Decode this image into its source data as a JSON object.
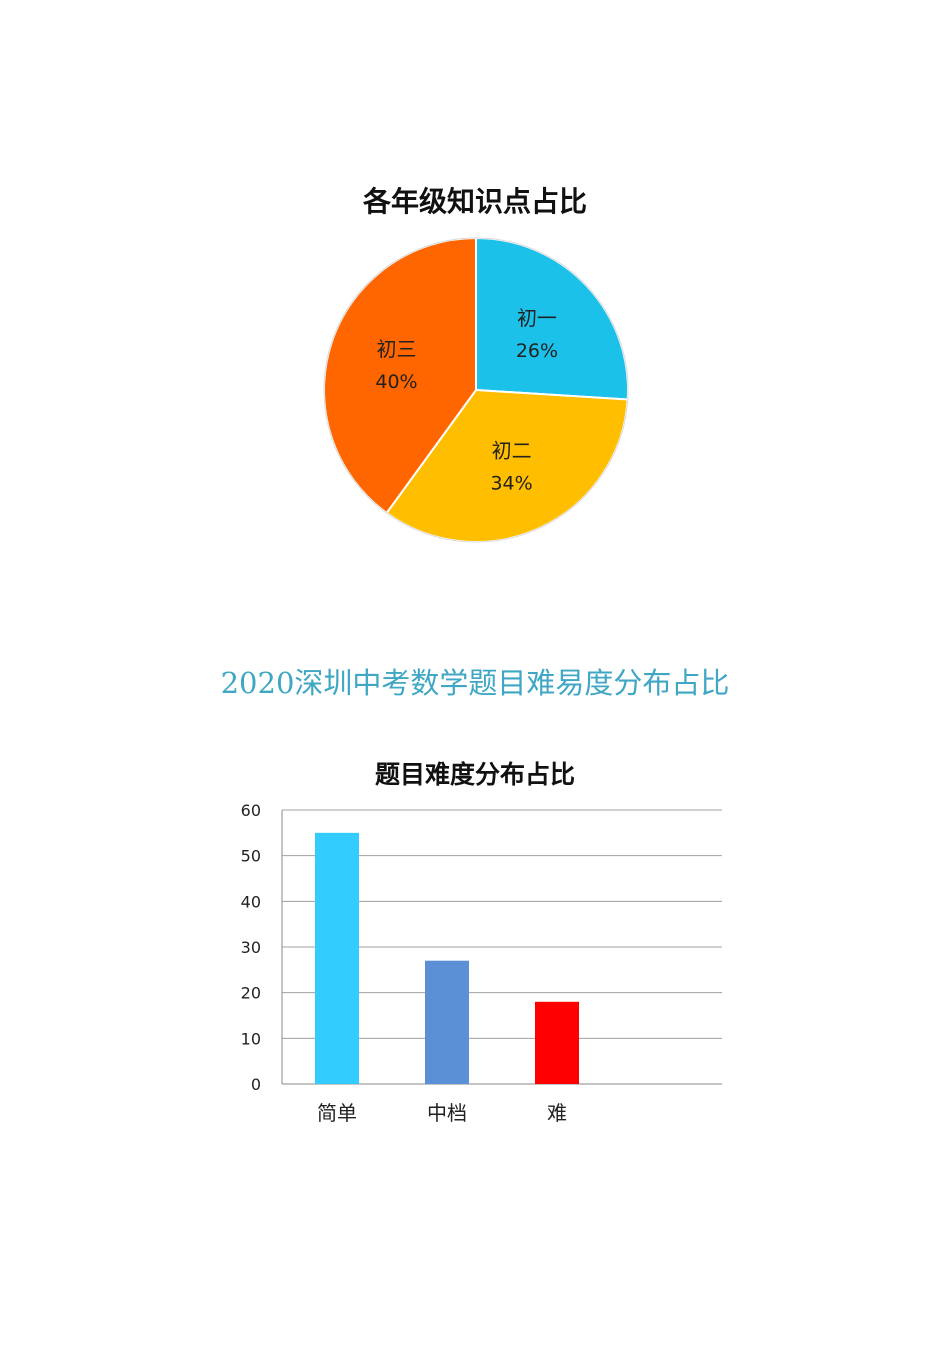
{
  "chart_data": [
    {
      "type": "pie",
      "title": "各年级知识点占比",
      "slices": [
        {
          "label": "初一",
          "value": 26,
          "value_label": "26%",
          "color": "#1cc1ea"
        },
        {
          "label": "初二",
          "value": 34,
          "value_label": "34%",
          "color": "#ffbe00"
        },
        {
          "label": "初三",
          "value": 40,
          "value_label": "40%",
          "color": "#ff6600"
        }
      ],
      "start_angle_deg": 0,
      "direction": "clockwise"
    },
    {
      "type": "bar",
      "title": "题目难度分布占比",
      "categories": [
        "简单",
        "中档",
        "难"
      ],
      "values": [
        55,
        27,
        18
      ],
      "colors": [
        "#33ccff",
        "#5b8fd6",
        "#ff0000"
      ],
      "ylim": [
        0,
        60
      ],
      "yticks": [
        0,
        10,
        20,
        30,
        40,
        50,
        60
      ],
      "grid": true,
      "xlabel": "",
      "ylabel": ""
    }
  ],
  "section_heading": "2020深圳中考数学题目难易度分布占比"
}
